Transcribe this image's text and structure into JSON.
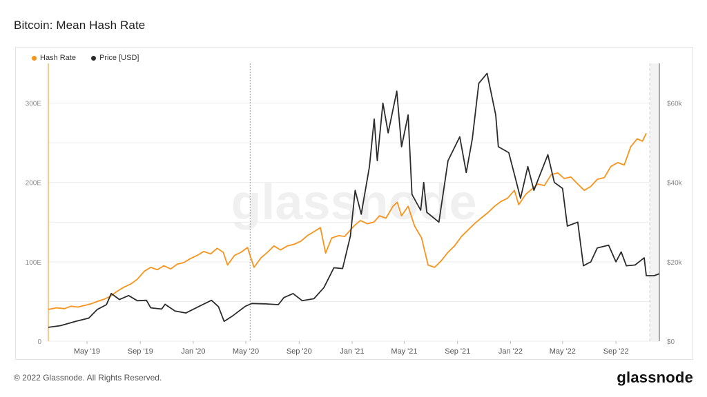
{
  "title": "Bitcoin: Mean Hash Rate",
  "watermark": "glassnode",
  "footer": {
    "copyright": "© 2022 Glassnode. All Rights Reserved.",
    "logo": "glassnode"
  },
  "colors": {
    "hash_rate": "#f7931a",
    "price": "#2b2b2b",
    "grid": "#ececec",
    "axis_text": "#888888"
  },
  "chart_data": {
    "type": "line",
    "legend": [
      "Hash Rate",
      "Price [USD]"
    ],
    "legend_position": "top-left",
    "grid": true,
    "x_tick_labels": [
      "May '19",
      "Sep '19",
      "Jan '20",
      "May '20",
      "Sep '20",
      "Jan '21",
      "May '21",
      "Sep '21",
      "Jan '22",
      "May '22",
      "Sep '22"
    ],
    "x_tick_dates": [
      "2019-05-01",
      "2019-09-01",
      "2020-01-01",
      "2020-05-01",
      "2020-09-01",
      "2021-01-01",
      "2021-05-01",
      "2021-09-01",
      "2022-01-01",
      "2022-05-01",
      "2022-09-01"
    ],
    "xlim": [
      "2019-02-01",
      "2022-12-10"
    ],
    "marker_date": "2020-05-11",
    "y_left": {
      "tick_labels": [
        "0",
        "100E",
        "200E",
        "300E"
      ],
      "tick_values": [
        0,
        100,
        200,
        300
      ],
      "range": [
        0,
        350
      ]
    },
    "y_right": {
      "tick_labels": [
        "$0",
        "$20k",
        "$40k",
        "$60k"
      ],
      "tick_values": [
        0,
        20000,
        40000,
        60000
      ],
      "range": [
        0,
        70000
      ]
    },
    "series": [
      {
        "name": "Hash Rate",
        "axis": "left",
        "points": [
          [
            "2019-02-01",
            40
          ],
          [
            "2019-02-20",
            42
          ],
          [
            "2019-03-10",
            41
          ],
          [
            "2019-03-25",
            44
          ],
          [
            "2019-04-10",
            43
          ],
          [
            "2019-04-25",
            45
          ],
          [
            "2019-05-10",
            47
          ],
          [
            "2019-05-25",
            50
          ],
          [
            "2019-06-10",
            53
          ],
          [
            "2019-06-25",
            57
          ],
          [
            "2019-07-10",
            63
          ],
          [
            "2019-07-25",
            68
          ],
          [
            "2019-08-10",
            72
          ],
          [
            "2019-08-25",
            78
          ],
          [
            "2019-09-10",
            88
          ],
          [
            "2019-09-25",
            93
          ],
          [
            "2019-10-10",
            90
          ],
          [
            "2019-10-25",
            95
          ],
          [
            "2019-11-10",
            91
          ],
          [
            "2019-11-25",
            97
          ],
          [
            "2019-12-10",
            99
          ],
          [
            "2019-12-25",
            104
          ],
          [
            "2020-01-10",
            108
          ],
          [
            "2020-01-25",
            113
          ],
          [
            "2020-02-10",
            110
          ],
          [
            "2020-02-25",
            117
          ],
          [
            "2020-03-10",
            112
          ],
          [
            "2020-03-20",
            96
          ],
          [
            "2020-04-05",
            108
          ],
          [
            "2020-04-20",
            112
          ],
          [
            "2020-05-05",
            118
          ],
          [
            "2020-05-20",
            93
          ],
          [
            "2020-06-05",
            105
          ],
          [
            "2020-06-20",
            112
          ],
          [
            "2020-07-05",
            120
          ],
          [
            "2020-07-20",
            115
          ],
          [
            "2020-08-05",
            120
          ],
          [
            "2020-08-20",
            122
          ],
          [
            "2020-09-05",
            126
          ],
          [
            "2020-09-20",
            133
          ],
          [
            "2020-10-05",
            138
          ],
          [
            "2020-10-20",
            143
          ],
          [
            "2020-11-01",
            111
          ],
          [
            "2020-11-15",
            130
          ],
          [
            "2020-12-01",
            133
          ],
          [
            "2020-12-15",
            132
          ],
          [
            "2021-01-05",
            145
          ],
          [
            "2021-01-20",
            152
          ],
          [
            "2021-02-05",
            148
          ],
          [
            "2021-02-20",
            150
          ],
          [
            "2021-03-05",
            158
          ],
          [
            "2021-03-20",
            155
          ],
          [
            "2021-04-05",
            170
          ],
          [
            "2021-04-15",
            175
          ],
          [
            "2021-04-25",
            158
          ],
          [
            "2021-05-10",
            170
          ],
          [
            "2021-05-25",
            145
          ],
          [
            "2021-06-10",
            130
          ],
          [
            "2021-06-25",
            96
          ],
          [
            "2021-07-10",
            93
          ],
          [
            "2021-07-25",
            101
          ],
          [
            "2021-08-10",
            112
          ],
          [
            "2021-08-25",
            120
          ],
          [
            "2021-09-10",
            132
          ],
          [
            "2021-09-25",
            140
          ],
          [
            "2021-10-10",
            148
          ],
          [
            "2021-10-25",
            155
          ],
          [
            "2021-11-10",
            162
          ],
          [
            "2021-11-25",
            170
          ],
          [
            "2021-12-10",
            176
          ],
          [
            "2021-12-25",
            180
          ],
          [
            "2022-01-10",
            190
          ],
          [
            "2022-01-20",
            172
          ],
          [
            "2022-02-05",
            185
          ],
          [
            "2022-02-20",
            192
          ],
          [
            "2022-03-05",
            198
          ],
          [
            "2022-03-20",
            196
          ],
          [
            "2022-04-05",
            210
          ],
          [
            "2022-04-20",
            212
          ],
          [
            "2022-05-05",
            205
          ],
          [
            "2022-05-20",
            207
          ],
          [
            "2022-06-05",
            198
          ],
          [
            "2022-06-20",
            190
          ],
          [
            "2022-07-05",
            195
          ],
          [
            "2022-07-20",
            204
          ],
          [
            "2022-08-05",
            206
          ],
          [
            "2022-08-20",
            220
          ],
          [
            "2022-09-05",
            225
          ],
          [
            "2022-09-20",
            222
          ],
          [
            "2022-10-05",
            245
          ],
          [
            "2022-10-20",
            255
          ],
          [
            "2022-11-01",
            252
          ],
          [
            "2022-11-10",
            262
          ]
        ]
      },
      {
        "name": "Price [USD]",
        "axis": "right",
        "points": [
          [
            "2019-02-01",
            3500
          ],
          [
            "2019-03-01",
            3900
          ],
          [
            "2019-04-05",
            5000
          ],
          [
            "2019-05-05",
            5800
          ],
          [
            "2019-05-25",
            8000
          ],
          [
            "2019-06-15",
            9200
          ],
          [
            "2019-06-26",
            12000
          ],
          [
            "2019-07-15",
            10500
          ],
          [
            "2019-08-05",
            11500
          ],
          [
            "2019-08-25",
            10200
          ],
          [
            "2019-09-15",
            10300
          ],
          [
            "2019-09-25",
            8400
          ],
          [
            "2019-10-20",
            8100
          ],
          [
            "2019-10-28",
            9300
          ],
          [
            "2019-11-20",
            7600
          ],
          [
            "2019-12-15",
            7100
          ],
          [
            "2020-01-15",
            8800
          ],
          [
            "2020-02-12",
            10300
          ],
          [
            "2020-02-28",
            8700
          ],
          [
            "2020-03-12",
            5000
          ],
          [
            "2020-04-01",
            6400
          ],
          [
            "2020-04-30",
            8800
          ],
          [
            "2020-05-15",
            9500
          ],
          [
            "2020-06-15",
            9400
          ],
          [
            "2020-07-15",
            9200
          ],
          [
            "2020-07-28",
            11000
          ],
          [
            "2020-08-18",
            12000
          ],
          [
            "2020-09-08",
            10200
          ],
          [
            "2020-10-05",
            10700
          ],
          [
            "2020-10-28",
            13500
          ],
          [
            "2020-11-20",
            18500
          ],
          [
            "2020-12-10",
            18300
          ],
          [
            "2020-12-28",
            26500
          ],
          [
            "2021-01-08",
            38000
          ],
          [
            "2021-01-22",
            32000
          ],
          [
            "2021-02-10",
            44000
          ],
          [
            "2021-02-21",
            56000
          ],
          [
            "2021-02-28",
            45500
          ],
          [
            "2021-03-13",
            60000
          ],
          [
            "2021-03-25",
            52500
          ],
          [
            "2021-04-14",
            63000
          ],
          [
            "2021-04-25",
            49000
          ],
          [
            "2021-05-10",
            57000
          ],
          [
            "2021-05-19",
            37000
          ],
          [
            "2021-06-08",
            33000
          ],
          [
            "2021-06-15",
            40000
          ],
          [
            "2021-06-22",
            32500
          ],
          [
            "2021-07-20",
            30000
          ],
          [
            "2021-08-10",
            45500
          ],
          [
            "2021-09-06",
            51500
          ],
          [
            "2021-09-21",
            42500
          ],
          [
            "2021-10-05",
            51000
          ],
          [
            "2021-10-20",
            65000
          ],
          [
            "2021-11-08",
            67500
          ],
          [
            "2021-11-28",
            57000
          ],
          [
            "2021-12-04",
            49000
          ],
          [
            "2021-12-28",
            47500
          ],
          [
            "2022-01-10",
            42000
          ],
          [
            "2022-01-24",
            36000
          ],
          [
            "2022-02-10",
            44000
          ],
          [
            "2022-02-24",
            38000
          ],
          [
            "2022-03-28",
            47000
          ],
          [
            "2022-04-12",
            40000
          ],
          [
            "2022-05-01",
            38500
          ],
          [
            "2022-05-12",
            29000
          ],
          [
            "2022-06-05",
            30000
          ],
          [
            "2022-06-18",
            19000
          ],
          [
            "2022-07-05",
            20000
          ],
          [
            "2022-07-20",
            23500
          ],
          [
            "2022-08-15",
            24200
          ],
          [
            "2022-09-01",
            20000
          ],
          [
            "2022-09-13",
            22500
          ],
          [
            "2022-09-25",
            19000
          ],
          [
            "2022-10-15",
            19200
          ],
          [
            "2022-11-05",
            21000
          ],
          [
            "2022-11-10",
            16500
          ],
          [
            "2022-11-28",
            16500
          ],
          [
            "2022-12-10",
            17000
          ]
        ]
      }
    ]
  }
}
